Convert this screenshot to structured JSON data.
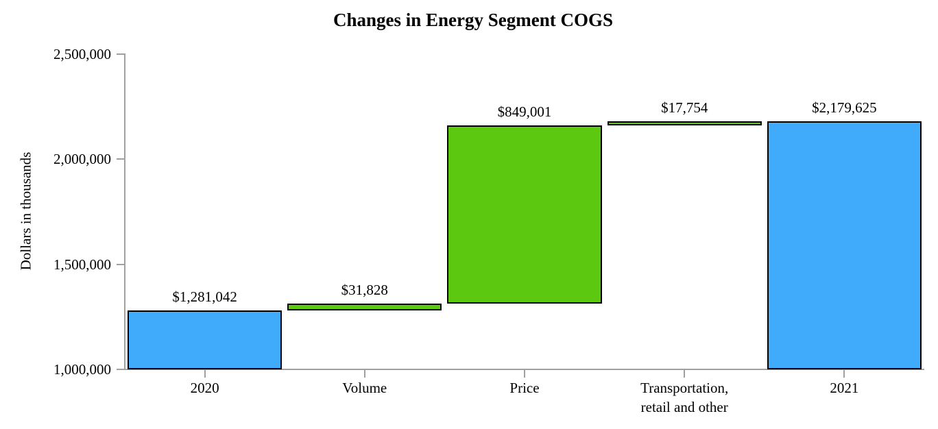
{
  "chart_data": {
    "type": "bar",
    "subtype": "waterfall",
    "title": "Changes in Energy Segment COGS",
    "ylabel": "Dollars in thousands",
    "xlabel": "",
    "categories": [
      "2020",
      "Volume",
      "Price",
      "Transportation,\nretail and other",
      "2021"
    ],
    "bars": [
      {
        "category": "2020",
        "value_label": "$1,281,042",
        "start": 1000000,
        "end": 1281042,
        "role": "total"
      },
      {
        "category": "Volume",
        "value_label": "$31,828",
        "start": 1281042,
        "end": 1312870,
        "role": "increase"
      },
      {
        "category": "Price",
        "value_label": "$849,001",
        "start": 1312870,
        "end": 2161871,
        "role": "increase"
      },
      {
        "category": "Transportation,\nretail and other",
        "value_label": "$17,754",
        "start": 2161871,
        "end": 2179625,
        "role": "increase"
      },
      {
        "category": "2021",
        "value_label": "$2,179,625",
        "start": 1000000,
        "end": 2179625,
        "role": "total"
      }
    ],
    "y_axis": {
      "min": 1000000,
      "max": 2500000,
      "tick_values": [
        2500000,
        2000000,
        1500000,
        1000000
      ],
      "tick_labels": [
        "2,500,000",
        "2,000,000",
        "1,500,000",
        "1,000,000"
      ]
    },
    "grid": "off",
    "legend": "none",
    "colors": {
      "total_bar": "#3fabfa",
      "increase_bar": "#5cc810",
      "bar_border": "#000000",
      "axis_line": "#a0a0a0",
      "text": "#000000"
    }
  }
}
